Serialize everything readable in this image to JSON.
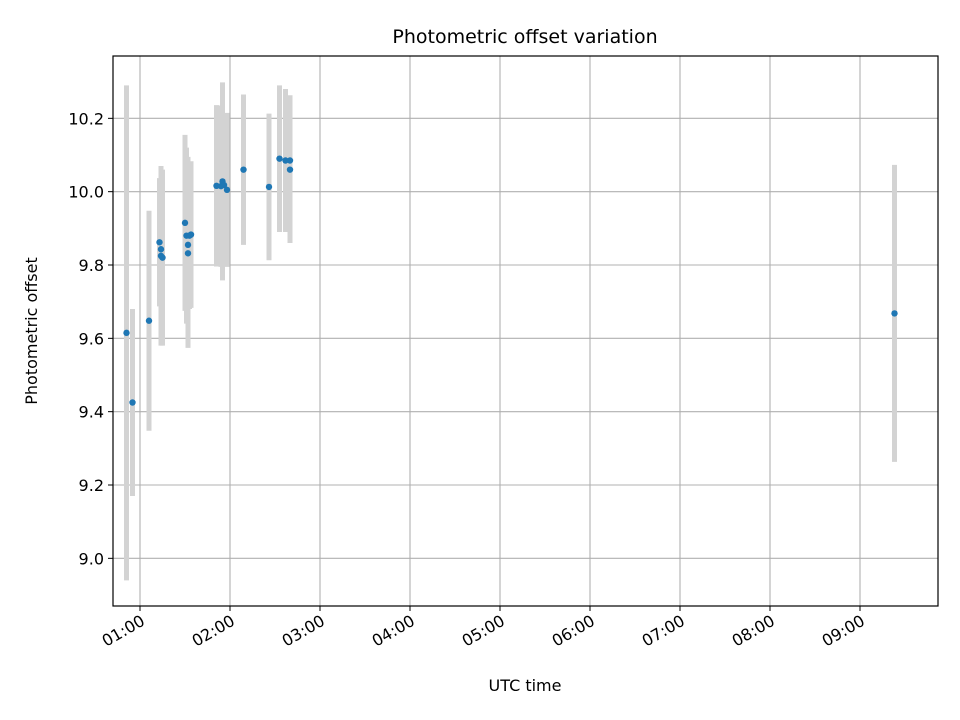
{
  "chart_data": {
    "type": "scatter",
    "title": "Photometric offset variation",
    "xlabel": "UTC time",
    "ylabel": "Photometric offset",
    "xlim": [
      "00:42",
      "09:52"
    ],
    "ylim": [
      8.87,
      10.37
    ],
    "x_ticks": [
      "01:00",
      "02:00",
      "03:00",
      "04:00",
      "05:00",
      "06:00",
      "07:00",
      "08:00",
      "09:00"
    ],
    "y_ticks": [
      "9.0",
      "9.2",
      "9.4",
      "9.6",
      "9.8",
      "10.0",
      "10.2"
    ],
    "grid": true,
    "point_color": "#1f77b4",
    "errorbar_color": "#d3d3d3",
    "points": [
      {
        "x": "00:51",
        "y": 9.615,
        "err": 0.675
      },
      {
        "x": "00:55",
        "y": 9.425,
        "err": 0.255
      },
      {
        "x": "01:06",
        "y": 9.648,
        "err": 0.3
      },
      {
        "x": "01:13",
        "y": 9.862,
        "err": 0.175
      },
      {
        "x": "01:14",
        "y": 9.843,
        "err": 0.2
      },
      {
        "x": "01:14",
        "y": 9.825,
        "err": 0.245
      },
      {
        "x": "01:15",
        "y": 9.82,
        "err": 0.24
      },
      {
        "x": "01:30",
        "y": 9.915,
        "err": 0.24
      },
      {
        "x": "01:31",
        "y": 9.88,
        "err": 0.24
      },
      {
        "x": "01:32",
        "y": 9.855,
        "err": 0.24
      },
      {
        "x": "01:32",
        "y": 9.832,
        "err": 0.258
      },
      {
        "x": "01:33",
        "y": 9.88,
        "err": 0.2
      },
      {
        "x": "01:34",
        "y": 9.883,
        "err": 0.2
      },
      {
        "x": "01:51",
        "y": 10.016,
        "err": 0.22
      },
      {
        "x": "01:54",
        "y": 10.015,
        "err": 0.22
      },
      {
        "x": "01:55",
        "y": 10.028,
        "err": 0.27
      },
      {
        "x": "01:56",
        "y": 10.018,
        "err": 0.19
      },
      {
        "x": "01:58",
        "y": 10.005,
        "err": 0.21
      },
      {
        "x": "02:09",
        "y": 10.06,
        "err": 0.205
      },
      {
        "x": "02:26",
        "y": 10.013,
        "err": 0.2
      },
      {
        "x": "02:33",
        "y": 10.09,
        "err": 0.2
      },
      {
        "x": "02:37",
        "y": 10.085,
        "err": 0.195
      },
      {
        "x": "02:40",
        "y": 10.085,
        "err": 0.178
      },
      {
        "x": "02:40",
        "y": 10.06,
        "err": 0.2
      },
      {
        "x": "09:23",
        "y": 9.668,
        "err": 0.405
      }
    ]
  }
}
